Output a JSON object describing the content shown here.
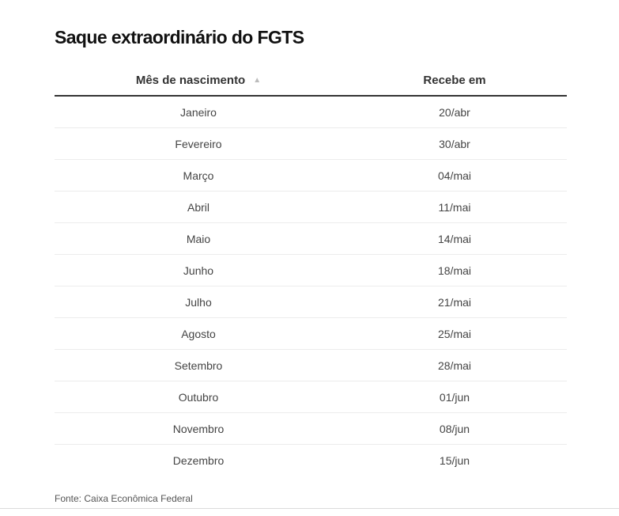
{
  "title": "Saque extraordinário do FGTS",
  "source": "Fonte: Caixa Econômica Federal",
  "chart_data": {
    "type": "table",
    "columns": [
      "Mês de nascimento",
      "Recebe em"
    ],
    "sort_indicator": "▲",
    "rows": [
      [
        "Janeiro",
        "20/abr"
      ],
      [
        "Fevereiro",
        "30/abr"
      ],
      [
        "Março",
        "04/mai"
      ],
      [
        "Abril",
        "11/mai"
      ],
      [
        "Maio",
        "14/mai"
      ],
      [
        "Junho",
        "18/mai"
      ],
      [
        "Julho",
        "21/mai"
      ],
      [
        "Agosto",
        "25/mai"
      ],
      [
        "Setembro",
        "28/mai"
      ],
      [
        "Outubro",
        "01/jun"
      ],
      [
        "Novembro",
        "08/jun"
      ],
      [
        "Dezembro",
        "15/jun"
      ]
    ]
  }
}
